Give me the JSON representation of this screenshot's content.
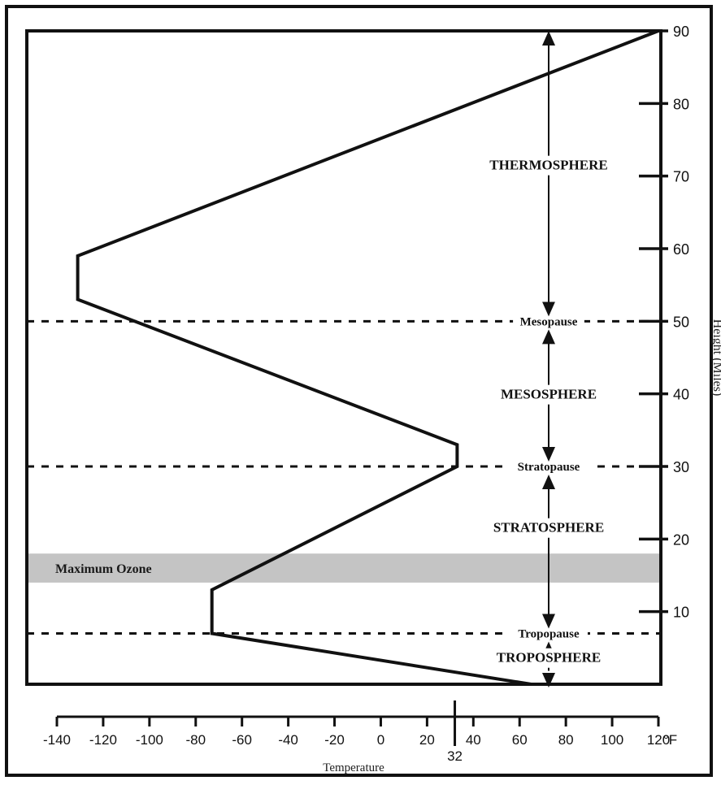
{
  "chart_data": {
    "type": "line",
    "title": "",
    "xlabel": "Temperature",
    "ylabel": "Height (Miles)",
    "x_unit": "°F",
    "xlim": [
      -140,
      120
    ],
    "ylim": [
      0,
      90
    ],
    "x_ticks": [
      "-140",
      "-120",
      "-100",
      "-80",
      "-60",
      "-40",
      "-20",
      "0",
      "20",
      "40",
      "60",
      "80",
      "100",
      "120"
    ],
    "x_marker": {
      "value": 32,
      "label": "32"
    },
    "y_ticks": [
      "10",
      "20",
      "30",
      "40",
      "50",
      "60",
      "70",
      "80",
      "90"
    ],
    "series": [
      {
        "x": [
          65,
          -73,
          -73,
          33,
          33,
          -131,
          -131,
          120
        ],
        "y": [
          0,
          7,
          13,
          30,
          33,
          53,
          59,
          90
        ]
      }
    ],
    "pause_lines": [
      {
        "label": "Tropopause",
        "height": 7
      },
      {
        "label": "Stratopause",
        "height": 30
      },
      {
        "label": "Mesopause",
        "height": 50
      }
    ],
    "layers": [
      {
        "label": "TROPOSPHERE",
        "from": 0,
        "to": 7
      },
      {
        "label": "STRATOSPHERE",
        "from": 7,
        "to": 30
      },
      {
        "label": "MESOSPHERE",
        "from": 30,
        "to": 50
      },
      {
        "label": "THERMOSPHERE",
        "from": 50,
        "to": 90
      }
    ],
    "ozone_band": {
      "label": "Maximum Ozone",
      "from": 14,
      "to": 18,
      "color": "#c4c4c4"
    }
  }
}
